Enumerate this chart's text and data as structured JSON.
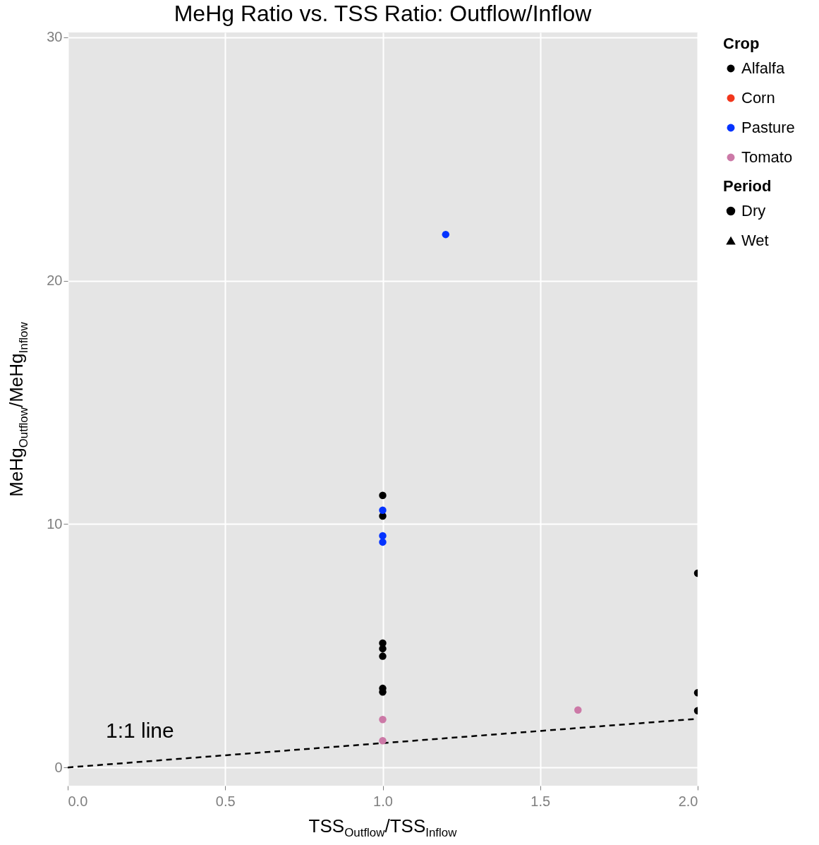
{
  "chart_data": {
    "type": "scatter",
    "title": "MeHg Ratio vs. TSS Ratio: Outflow/Inflow",
    "xlabel": "TSS$_{Outflow}$/TSS$_{Inflow}$",
    "ylabel": "MeHg$_{Outflow}$/MeHg$_{Inflow}$",
    "legend_title": [
      "Crop",
      "Period"
    ],
    "xlim": [
      0,
      2
    ],
    "ylim": [
      -0.75,
      30.2
    ],
    "xticks": [
      {
        "value": 0,
        "label": "0.0"
      },
      0.5,
      {
        "value": 1,
        "label": "1.0"
      },
      1.5,
      {
        "value": 2,
        "label": "2.0"
      }
    ],
    "yticks": [
      0,
      10,
      20,
      30
    ],
    "grid": true,
    "legend": "right",
    "series": [
      {
        "name": "Alfalfa",
        "color": "#000000",
        "marker": "circle",
        "x": [
          1,
          1,
          1,
          1,
          1,
          1,
          1,
          2,
          2,
          2
        ],
        "values": [
          11.18,
          10.33,
          5.11,
          4.88,
          4.57,
          3.25,
          3.1,
          7.98,
          3.07,
          2.33
        ]
      },
      {
        "name": "Corn",
        "color": "#f2361c",
        "marker": "circle"
      },
      {
        "name": "Pasture",
        "color": "#0433ff",
        "marker": "circle",
        "x": [
          1,
          1,
          1,
          1.2
        ],
        "values": [
          10.57,
          9.52,
          9.26,
          21.9
        ]
      },
      {
        "name": "Tomato",
        "color": "#cc79a7",
        "marker": "circle",
        "x": [
          1,
          1,
          1.62
        ],
        "values": [
          1.97,
          1.1,
          2.36
        ]
      },
      {
        "name": "Dry",
        "marker": "circle"
      },
      {
        "name": "Wet",
        "marker": "triangle"
      },
      {
        "type": "line",
        "color": "#000000",
        "line_style": "dashed",
        "x": [
          0,
          2
        ],
        "values": [
          0,
          2
        ]
      }
    ],
    "annotations": [
      "1:1 line"
    ]
  }
}
